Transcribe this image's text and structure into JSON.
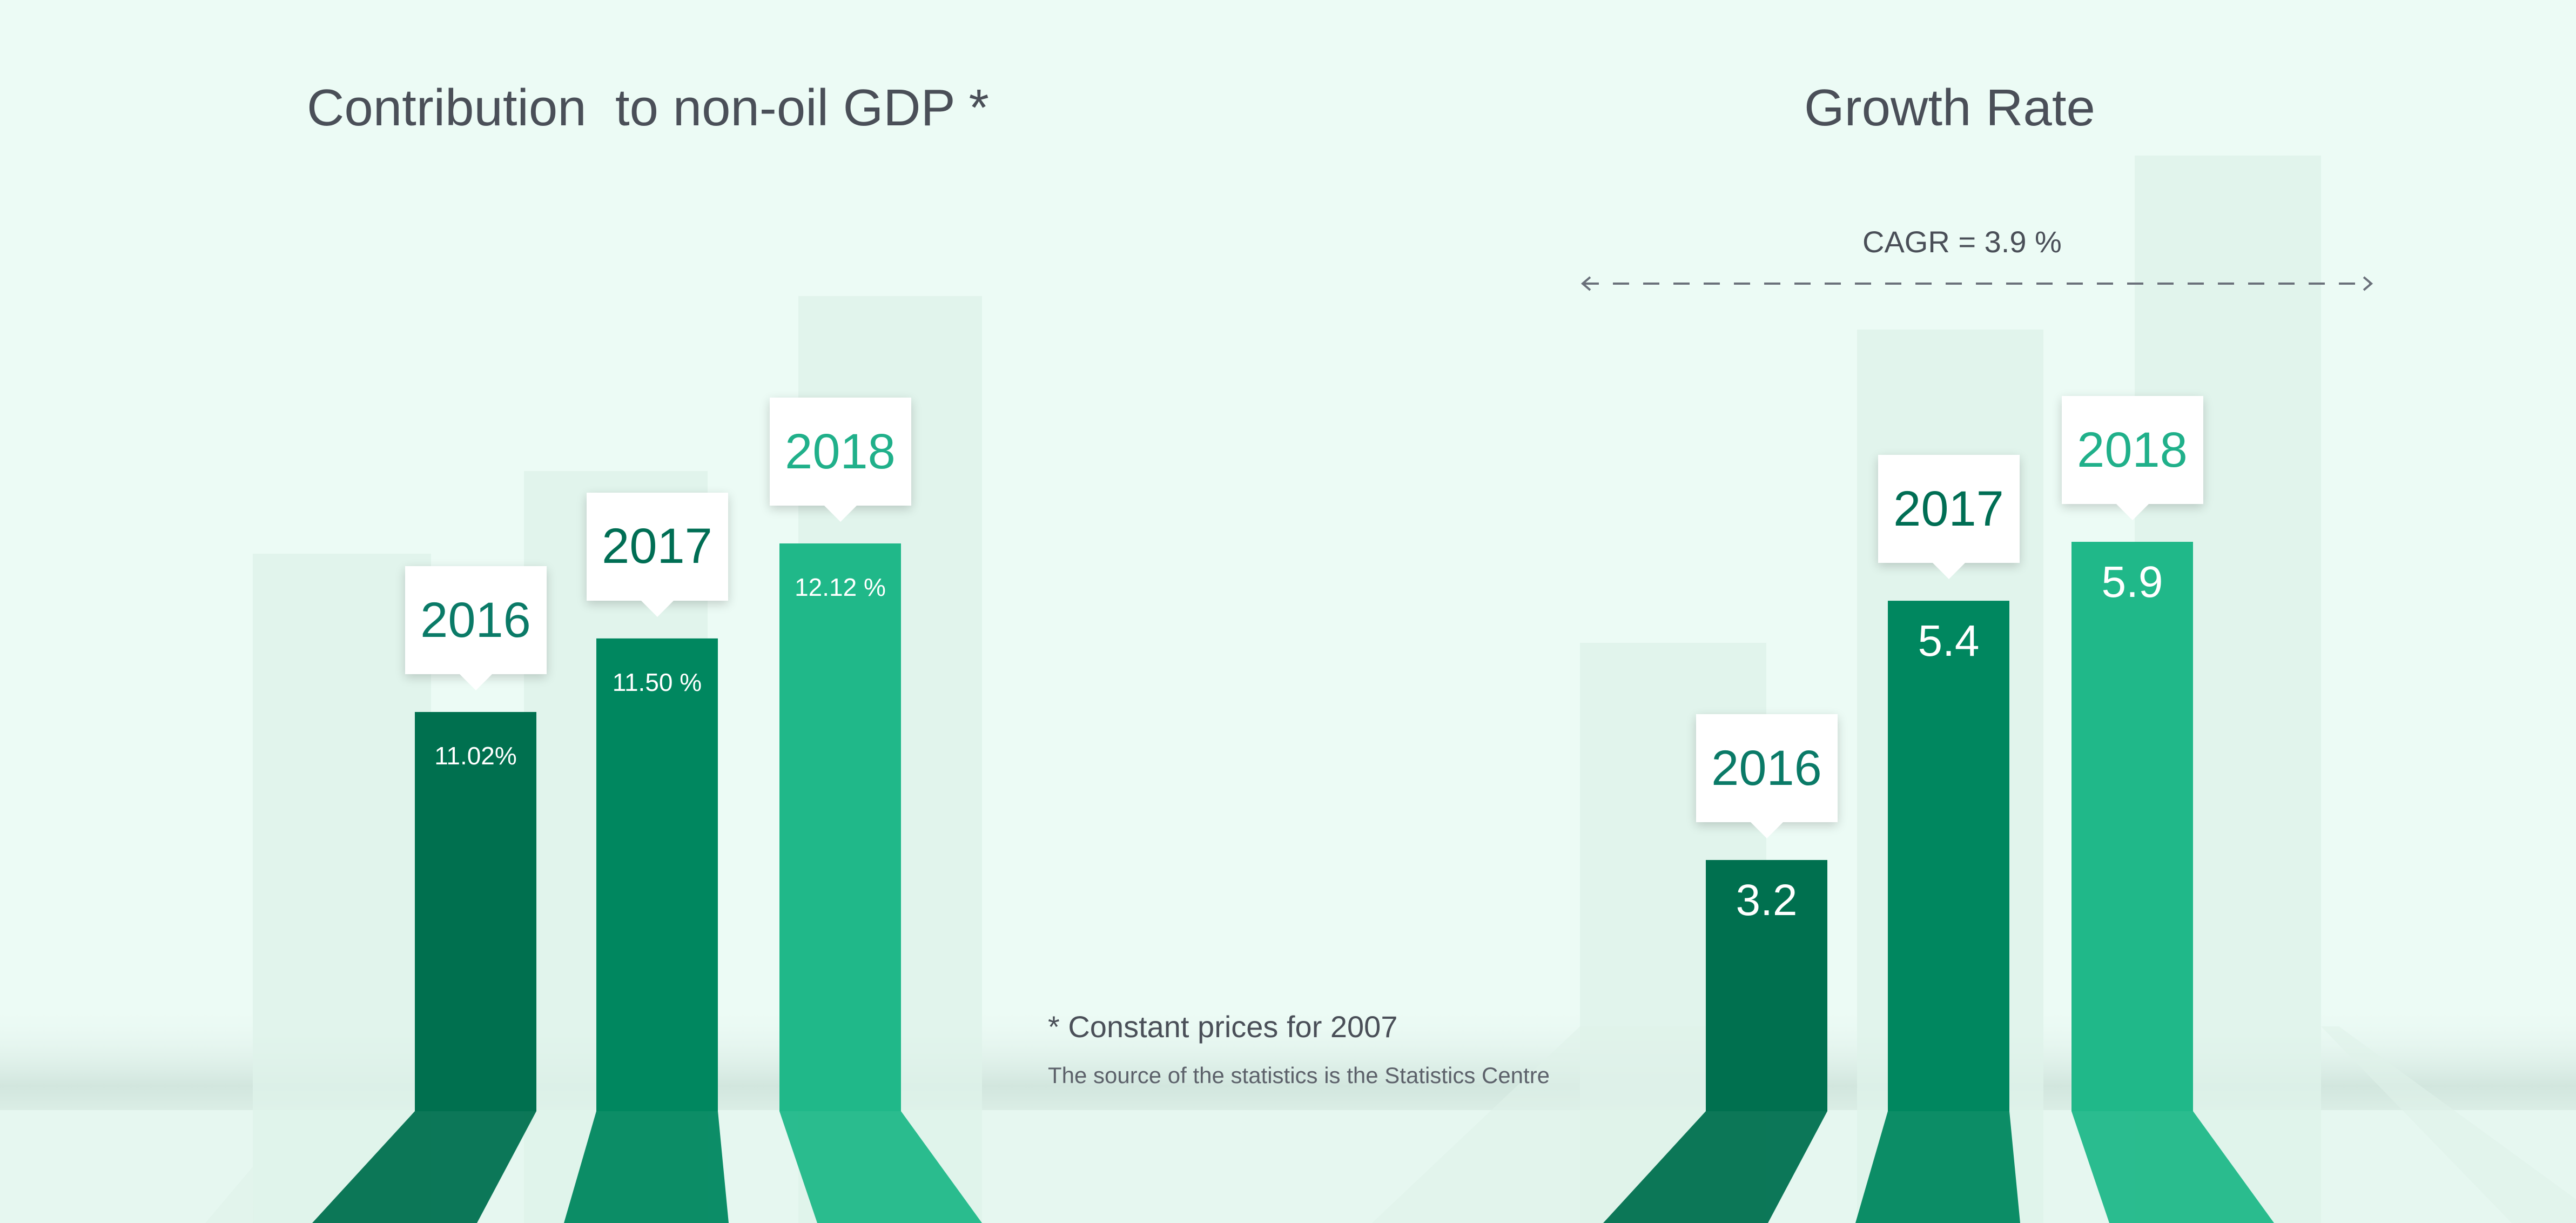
{
  "titles": {
    "left": "Contribution  to non-oil GDP *",
    "right": "Growth Rate"
  },
  "notes": {
    "constant_prices": "* Constant prices for 2007",
    "source": "The source of the statistics is the Statistics Centre"
  },
  "cagr_label": "CAGR = 3.9 %",
  "colors": {
    "y2016": "#00704f",
    "y2017": "#00875f",
    "y2018": "#20b889",
    "year_text_2016": "#0a7a67",
    "year_text_2017": "#006e54",
    "year_text_2018": "#20b08a",
    "background": "#ecfbf5"
  },
  "chart_data": [
    {
      "type": "bar",
      "title": "Contribution  to non-oil GDP *",
      "categories": [
        "2016",
        "2017",
        "2018"
      ],
      "values": [
        11.02,
        11.5,
        12.12
      ],
      "value_labels": [
        "11.02%",
        "11.50 %",
        "12.12 %"
      ]
    },
    {
      "type": "bar",
      "title": "Growth Rate",
      "categories": [
        "2016",
        "2017",
        "2018"
      ],
      "values": [
        3.2,
        5.4,
        5.9
      ],
      "value_labels": [
        "3.2",
        "5.4",
        "5.9"
      ],
      "annotation": "CAGR = 3.9 %"
    }
  ]
}
